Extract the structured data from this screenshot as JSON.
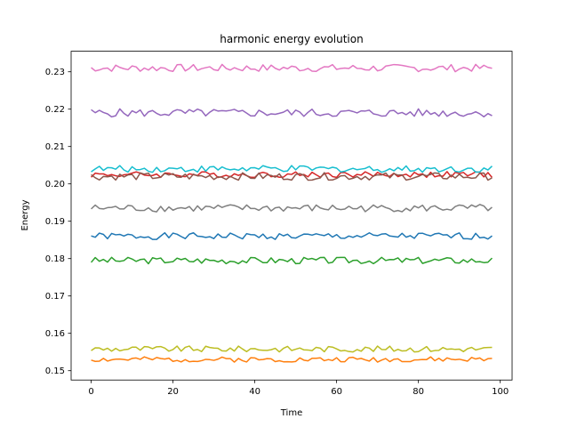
{
  "chart_data": {
    "type": "line",
    "title": "harmonic energy evolution",
    "xlabel": "Time",
    "ylabel": "Energy",
    "xlim": [
      -4.9,
      102.9
    ],
    "ylim": [
      0.1475,
      0.2355
    ],
    "xticks": [
      0,
      20,
      40,
      60,
      80,
      100
    ],
    "yticks": [
      0.15,
      0.16,
      0.17,
      0.18,
      0.19,
      0.2,
      0.21,
      0.22,
      0.23
    ],
    "ytick_labels": [
      "0.15",
      "0.16",
      "0.17",
      "0.18",
      "0.19",
      "0.20",
      "0.21",
      "0.22",
      "0.23"
    ],
    "grid": false,
    "series": [
      {
        "color": "#1f77b4",
        "base": 0.186,
        "amp": 0.0009,
        "seed": 1
      },
      {
        "color": "#ff7f0e",
        "base": 0.153,
        "amp": 0.0007,
        "seed": 2
      },
      {
        "color": "#2ca02c",
        "base": 0.1795,
        "amp": 0.0009,
        "seed": 3
      },
      {
        "color": "#d62728",
        "base": 0.2025,
        "amp": 0.0008,
        "seed": 4
      },
      {
        "color": "#9467bd",
        "base": 0.219,
        "amp": 0.0011,
        "seed": 5
      },
      {
        "color": "#8c564b",
        "base": 0.202,
        "amp": 0.001,
        "seed": 6
      },
      {
        "color": "#e377c2",
        "base": 0.231,
        "amp": 0.001,
        "seed": 7
      },
      {
        "color": "#7f7f7f",
        "base": 0.1935,
        "amp": 0.001,
        "seed": 8
      },
      {
        "color": "#bcbd22",
        "base": 0.1558,
        "amp": 0.0008,
        "seed": 9
      },
      {
        "color": "#17becf",
        "base": 0.204,
        "amp": 0.0009,
        "seed": 10
      }
    ],
    "x_count": 99
  }
}
